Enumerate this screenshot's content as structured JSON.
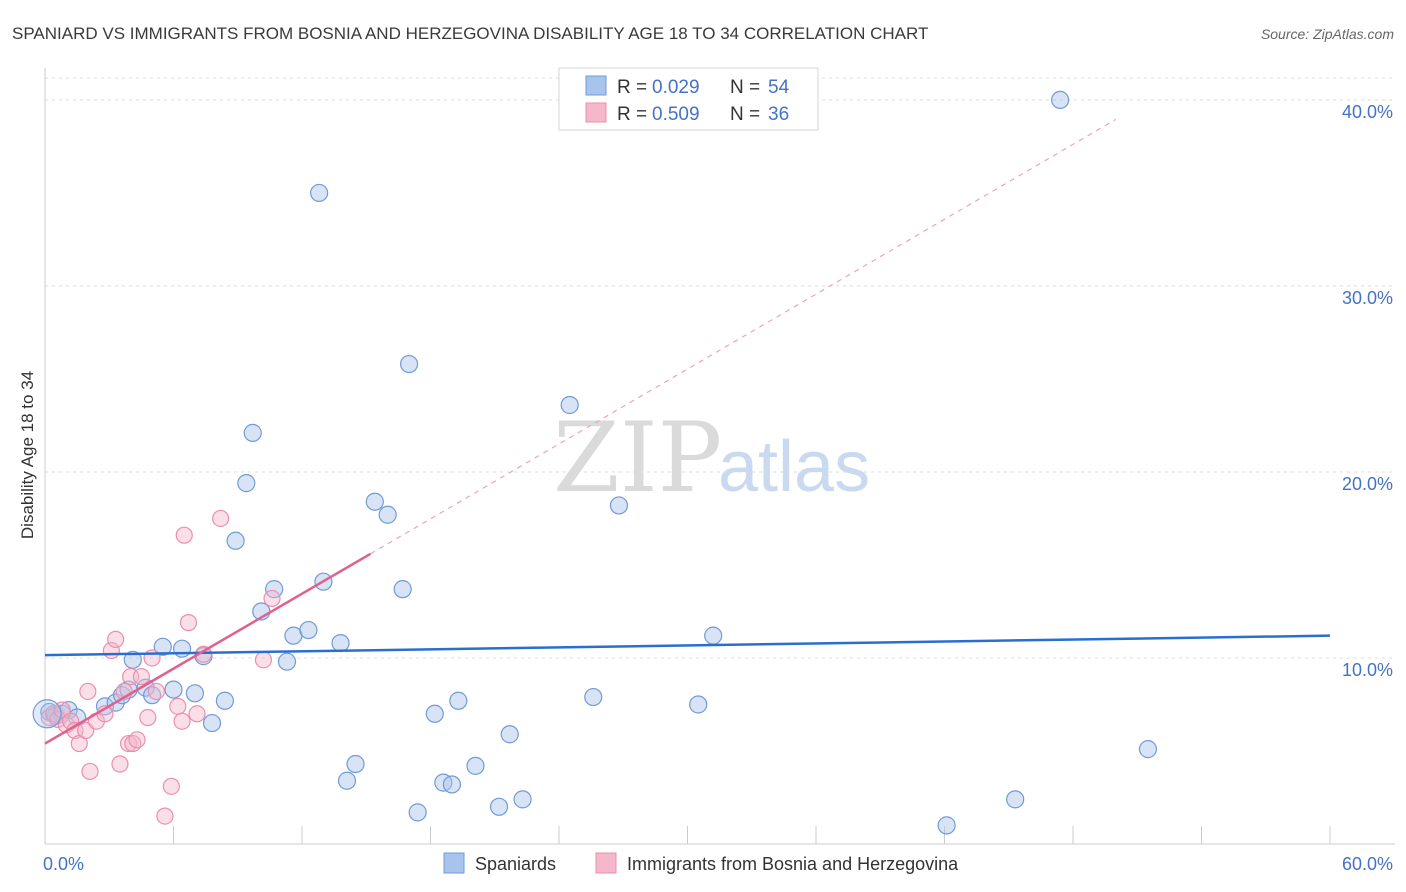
{
  "chart_data": {
    "type": "scatter",
    "title": "SPANIARD VS IMMIGRANTS FROM BOSNIA AND HERZEGOVINA DISABILITY AGE 18 TO 34 CORRELATION CHART",
    "source": "Source: ZipAtlas.com",
    "ylabel": "Disability Age 18 to 34",
    "xlabel": "",
    "xlim": [
      0,
      60
    ],
    "ylim": [
      0,
      41.5
    ],
    "y_ticks": [
      {
        "value": 10,
        "label": "10.0%"
      },
      {
        "value": 20,
        "label": "20.0%"
      },
      {
        "value": 30,
        "label": "30.0%"
      },
      {
        "value": 40,
        "label": "40.0%"
      }
    ],
    "x_ticks": [
      {
        "value": 0,
        "label": "0.0%"
      },
      {
        "value": 60,
        "label": "60.0%"
      }
    ],
    "legend": {
      "placement": "top-center",
      "entries": [
        {
          "r_label": "R =",
          "r_value": "0.029",
          "n_label": "N =",
          "n_value": "54"
        },
        {
          "r_label": "R =",
          "r_value": "0.509",
          "n_label": "N =",
          "n_value": "36"
        }
      ]
    },
    "watermark": {
      "zip": "ZIP",
      "atlas": "atlas"
    },
    "series": [
      {
        "name": "Spaniards",
        "color": "#a9c4ec",
        "stroke": "#6f9bd8",
        "trend_color": "#2a6fd0",
        "trend": {
          "x0": 0,
          "y0": 10.15,
          "x1": 60,
          "y1": 11.2,
          "solid_to": 60
        },
        "points": [
          [
            0.2,
            7.1
          ],
          [
            0.5,
            6.9
          ],
          [
            0.8,
            7.0
          ],
          [
            1.1,
            7.2
          ],
          [
            1.5,
            6.8
          ],
          [
            2.8,
            7.4
          ],
          [
            3.3,
            7.6
          ],
          [
            3.6,
            8.0
          ],
          [
            3.9,
            8.3
          ],
          [
            4.1,
            9.9
          ],
          [
            4.7,
            8.4
          ],
          [
            5.0,
            8.0
          ],
          [
            5.5,
            10.6
          ],
          [
            6.0,
            8.3
          ],
          [
            6.4,
            10.5
          ],
          [
            7.0,
            8.1
          ],
          [
            7.4,
            10.1
          ],
          [
            7.8,
            6.5
          ],
          [
            8.4,
            7.7
          ],
          [
            8.9,
            16.3
          ],
          [
            9.4,
            19.4
          ],
          [
            9.7,
            22.1
          ],
          [
            10.1,
            12.5
          ],
          [
            10.7,
            13.7
          ],
          [
            11.3,
            9.8
          ],
          [
            11.6,
            11.2
          ],
          [
            12.3,
            11.5
          ],
          [
            12.8,
            35.0
          ],
          [
            13.0,
            14.1
          ],
          [
            13.8,
            10.8
          ],
          [
            14.1,
            3.4
          ],
          [
            14.5,
            4.3
          ],
          [
            15.4,
            18.4
          ],
          [
            16.0,
            17.7
          ],
          [
            16.7,
            13.7
          ],
          [
            17.0,
            25.8
          ],
          [
            17.4,
            1.7
          ],
          [
            18.2,
            7.0
          ],
          [
            18.6,
            3.3
          ],
          [
            19.0,
            3.2
          ],
          [
            19.3,
            7.7
          ],
          [
            20.1,
            4.2
          ],
          [
            21.2,
            2.0
          ],
          [
            21.7,
            5.9
          ],
          [
            22.3,
            2.4
          ],
          [
            24.5,
            23.6
          ],
          [
            25.6,
            7.9
          ],
          [
            26.8,
            18.2
          ],
          [
            30.5,
            7.5
          ],
          [
            31.2,
            11.2
          ],
          [
            42.1,
            1.0
          ],
          [
            45.3,
            2.4
          ],
          [
            47.4,
            40.0
          ],
          [
            51.5,
            5.1
          ]
        ]
      },
      {
        "name": "Immigrants from Bosnia and Herzegovina",
        "color": "#f5b8cb",
        "stroke": "#ea8fae",
        "trend_color": "#e0608e",
        "trend": {
          "x0": 0,
          "y0": 5.4,
          "x1": 15.2,
          "y1": 15.6,
          "dashed_to": 50
        },
        "points": [
          [
            0.2,
            6.8
          ],
          [
            0.4,
            7.0
          ],
          [
            0.6,
            6.7
          ],
          [
            0.8,
            7.2
          ],
          [
            1.0,
            6.4
          ],
          [
            1.2,
            6.6
          ],
          [
            1.4,
            6.1
          ],
          [
            1.6,
            5.4
          ],
          [
            1.9,
            6.1
          ],
          [
            2.0,
            8.2
          ],
          [
            2.1,
            3.9
          ],
          [
            2.4,
            6.6
          ],
          [
            2.8,
            7.0
          ],
          [
            3.1,
            10.4
          ],
          [
            3.3,
            11.0
          ],
          [
            3.5,
            4.3
          ],
          [
            3.7,
            8.2
          ],
          [
            3.9,
            5.4
          ],
          [
            4.0,
            9.0
          ],
          [
            4.1,
            5.4
          ],
          [
            4.3,
            5.6
          ],
          [
            4.5,
            9.0
          ],
          [
            4.8,
            6.8
          ],
          [
            5.0,
            10.0
          ],
          [
            5.2,
            8.2
          ],
          [
            5.6,
            1.5
          ],
          [
            5.9,
            3.1
          ],
          [
            6.2,
            7.4
          ],
          [
            6.4,
            6.6
          ],
          [
            6.5,
            16.6
          ],
          [
            6.7,
            11.9
          ],
          [
            7.1,
            7.0
          ],
          [
            7.4,
            10.2
          ],
          [
            8.2,
            17.5
          ],
          [
            10.2,
            9.9
          ],
          [
            10.6,
            13.2
          ]
        ]
      }
    ]
  }
}
